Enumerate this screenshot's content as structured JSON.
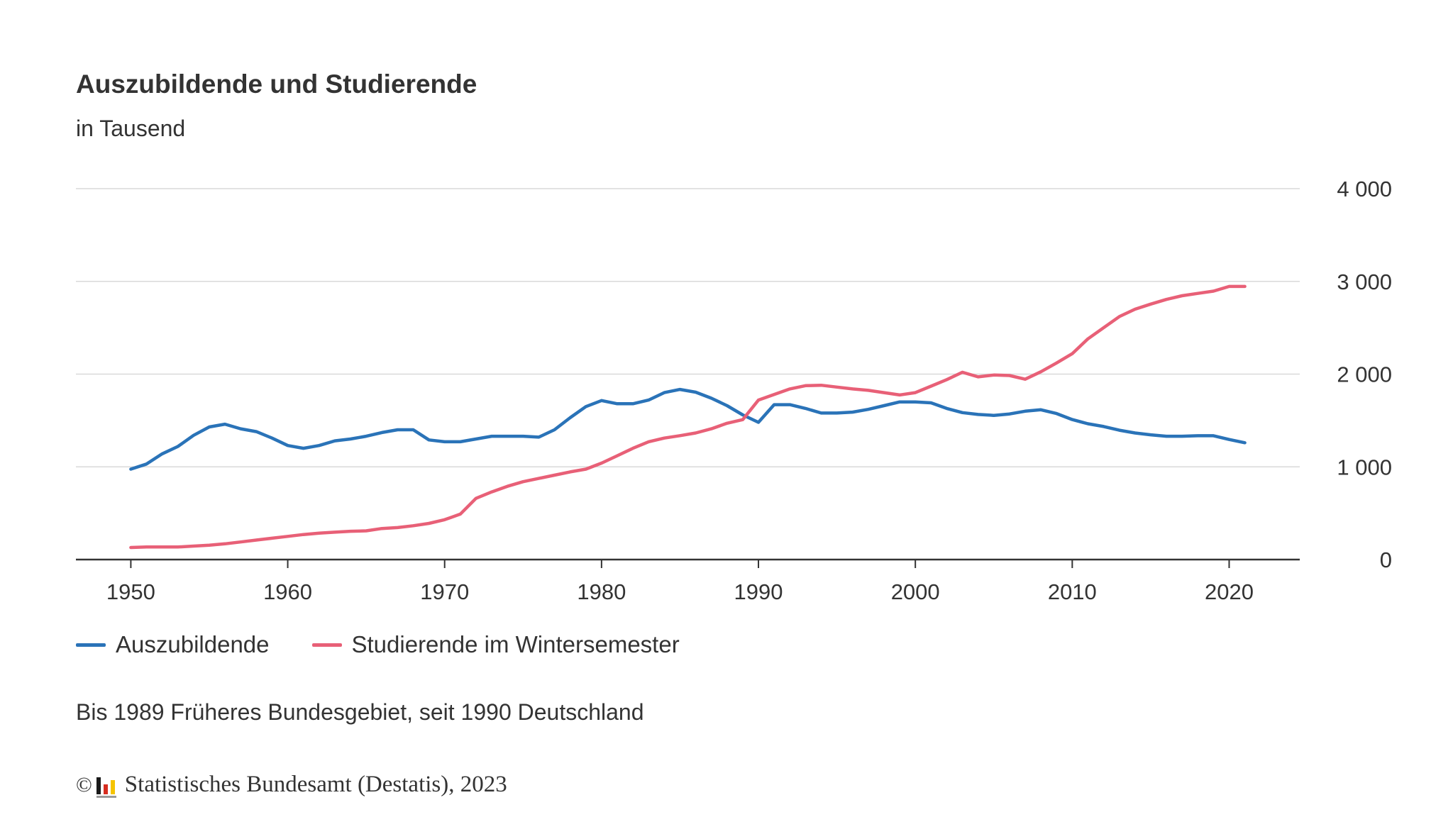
{
  "chart_data": {
    "type": "line",
    "title": "Auszubildende und Studierende",
    "subtitle": "in Tausend",
    "x": [
      1950,
      1951,
      1952,
      1953,
      1954,
      1955,
      1956,
      1957,
      1958,
      1959,
      1960,
      1961,
      1962,
      1963,
      1964,
      1965,
      1966,
      1967,
      1968,
      1969,
      1970,
      1971,
      1972,
      1973,
      1974,
      1975,
      1976,
      1977,
      1978,
      1979,
      1980,
      1981,
      1982,
      1983,
      1984,
      1985,
      1986,
      1987,
      1988,
      1989,
      1990,
      1991,
      1992,
      1993,
      1994,
      1995,
      1996,
      1997,
      1998,
      1999,
      2000,
      2001,
      2002,
      2003,
      2004,
      2005,
      2006,
      2007,
      2008,
      2009,
      2010,
      2011,
      2012,
      2013,
      2014,
      2015,
      2016,
      2017,
      2018,
      2019,
      2020,
      2021
    ],
    "series": [
      {
        "name": "Auszubildende",
        "color": "#2a73b8",
        "values": [
          975,
          1030,
          1140,
          1220,
          1340,
          1430,
          1460,
          1410,
          1380,
          1310,
          1230,
          1200,
          1230,
          1280,
          1300,
          1330,
          1370,
          1400,
          1400,
          1290,
          1270,
          1270,
          1300,
          1330,
          1330,
          1330,
          1320,
          1400,
          1530,
          1650,
          1715,
          1680,
          1680,
          1720,
          1800,
          1835,
          1805,
          1740,
          1660,
          1560,
          1480,
          1670,
          1670,
          1630,
          1580,
          1580,
          1590,
          1620,
          1660,
          1700,
          1700,
          1690,
          1630,
          1585,
          1565,
          1555,
          1570,
          1600,
          1615,
          1575,
          1510,
          1465,
          1435,
          1395,
          1365,
          1345,
          1330,
          1330,
          1335,
          1335,
          1295,
          1260
        ]
      },
      {
        "name": "Studierende im Wintersemester",
        "color": "#e86077",
        "values": [
          130,
          135,
          135,
          135,
          145,
          155,
          170,
          190,
          210,
          230,
          250,
          270,
          285,
          295,
          305,
          310,
          335,
          345,
          365,
          390,
          430,
          490,
          660,
          730,
          790,
          840,
          875,
          910,
          945,
          975,
          1040,
          1120,
          1200,
          1270,
          1310,
          1336,
          1365,
          1410,
          1470,
          1509,
          1720,
          1780,
          1840,
          1875,
          1880,
          1860,
          1840,
          1825,
          1800,
          1775,
          1800,
          1870,
          1940,
          2020,
          1970,
          1990,
          1985,
          1945,
          2025,
          2120,
          2220,
          2380,
          2500,
          2620,
          2700,
          2755,
          2805,
          2845,
          2870,
          2895,
          2945,
          2945
        ]
      }
    ],
    "yticks": [
      0,
      1000,
      2000,
      3000,
      4000
    ],
    "ytick_labels": [
      "0",
      "1 000",
      "2 000",
      "3 000",
      "4 000"
    ],
    "xticks": [
      1950,
      1960,
      1970,
      1980,
      1990,
      2000,
      2010,
      2020
    ],
    "xtick_labels": [
      "1950",
      "1960",
      "1970",
      "1980",
      "1990",
      "2000",
      "2010",
      "2020"
    ],
    "xlim": [
      1946.5,
      2024.5
    ],
    "ylim": [
      0,
      4000
    ],
    "grid": true,
    "legend_position": "bottom-left"
  },
  "note": "Bis 1989 Früheres Bundesgebiet, seit 1990 Deutschland",
  "source": {
    "copyright_symbol": "©",
    "text": "Statistisches Bundesamt (Destatis), 2023",
    "logo_icon": "destatis-logo-icon",
    "logo_colors": [
      "#1a1a1a",
      "#d62d20",
      "#f5c400"
    ]
  }
}
